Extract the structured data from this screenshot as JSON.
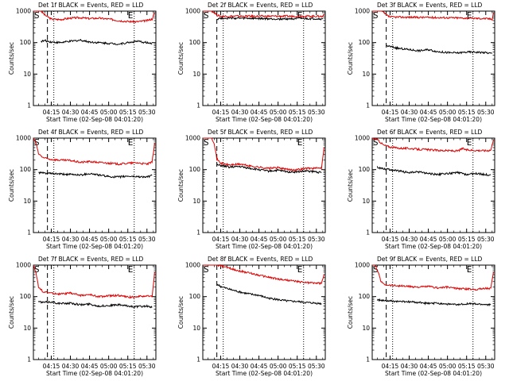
{
  "figure": {
    "xlabel": "Start Time (02-Sep-08 04:01:20)",
    "ylabel": "Counts/sec",
    "start_marker": "S",
    "end_marker": "E",
    "colors": {
      "events": "#000000",
      "lld": "#dd0000",
      "axes": "#000000"
    }
  },
  "chart_data": [
    {
      "type": "line",
      "title": "Det 1f BLACK = Events, RED = LLD",
      "xlabel": "Start Time (02-Sep-08 04:01:20)",
      "ylabel": "Counts/sec",
      "yscale": "log",
      "ylim": [
        1,
        1000
      ],
      "xlim": [
        "04:01",
        "05:37"
      ],
      "xticks": [
        "04:15",
        "04:30",
        "04:45",
        "05:00",
        "05:15",
        "05:30"
      ],
      "yticks": [
        "1",
        "10",
        "100",
        "1000"
      ],
      "dashed_line": "04:12",
      "dotted_lines": [
        "04:17",
        "05:20"
      ],
      "series": [
        {
          "x": [
            "04:01",
            "04:03",
            "04:05",
            "04:07",
            "04:10",
            "04:15",
            "04:22",
            "04:30",
            "04:38",
            "04:45",
            "04:52",
            "05:00",
            "05:08",
            "05:15",
            "05:22",
            "05:30",
            "05:34",
            "05:36"
          ],
          "values": [
            1000,
            1000,
            1000,
            1000,
            750,
            560,
            540,
            600,
            620,
            580,
            600,
            560,
            500,
            470,
            460,
            500,
            560,
            900
          ]
        },
        {
          "x": [
            "04:07",
            "04:10",
            "04:15",
            "04:22",
            "04:30",
            "04:38",
            "04:45",
            "04:52",
            "05:00",
            "05:08",
            "05:15",
            "05:22",
            "05:30",
            "05:34"
          ],
          "values": [
            110,
            115,
            105,
            100,
            110,
            120,
            105,
            100,
            95,
            90,
            100,
            110,
            100,
            90
          ]
        }
      ]
    },
    {
      "type": "line",
      "title": "Det 2f BLACK = Events, RED = LLD",
      "xlabel": "Start Time (02-Sep-08 04:01:20)",
      "ylabel": "Counts/sec",
      "yscale": "log",
      "ylim": [
        1,
        1000
      ],
      "xlim": [
        "04:01",
        "05:37"
      ],
      "xticks": [
        "04:15",
        "04:30",
        "04:45",
        "05:00",
        "05:15",
        "05:30"
      ],
      "yticks": [
        "1",
        "10",
        "100",
        "1000"
      ],
      "dashed_line": "04:12",
      "dotted_lines": [
        "04:17",
        "05:20"
      ],
      "series": [
        {
          "x": [
            "04:01",
            "04:05",
            "04:08",
            "04:10",
            "04:12",
            "04:15",
            "04:30",
            "04:45",
            "05:00",
            "05:15",
            "05:30",
            "05:35",
            "05:36"
          ],
          "values": [
            1000,
            1000,
            1000,
            900,
            750,
            690,
            690,
            690,
            690,
            690,
            690,
            680,
            800
          ]
        },
        {
          "x": [
            "04:12",
            "04:15",
            "04:30",
            "04:45",
            "05:00",
            "05:15",
            "05:30",
            "05:35"
          ],
          "values": [
            560,
            600,
            590,
            580,
            560,
            580,
            570,
            560
          ]
        }
      ]
    },
    {
      "type": "line",
      "title": "Det 3f BLACK = Events, RED = LLD",
      "xlabel": "Start Time (02-Sep-08 04:01:20)",
      "ylabel": "Counts/sec",
      "yscale": "log",
      "ylim": [
        1,
        1000
      ],
      "xlim": [
        "04:01",
        "05:37"
      ],
      "xticks": [
        "04:15",
        "04:30",
        "04:45",
        "05:00",
        "05:15",
        "05:30"
      ],
      "yticks": [
        "1",
        "10",
        "100",
        "1000"
      ],
      "dashed_line": "04:12",
      "dotted_lines": [
        "04:17",
        "05:20"
      ],
      "series": [
        {
          "x": [
            "04:01",
            "04:05",
            "04:08",
            "04:10",
            "04:12",
            "04:15",
            "04:30",
            "04:45",
            "05:00",
            "05:15",
            "05:30",
            "05:35",
            "05:36"
          ],
          "values": [
            1000,
            1000,
            1000,
            900,
            750,
            650,
            640,
            630,
            620,
            600,
            580,
            560,
            900
          ]
        },
        {
          "x": [
            "04:12",
            "04:15",
            "04:22",
            "04:30",
            "04:38",
            "04:45",
            "04:52",
            "05:00",
            "05:08",
            "05:15",
            "05:22",
            "05:30",
            "05:35"
          ],
          "values": [
            80,
            75,
            65,
            60,
            55,
            60,
            52,
            48,
            47,
            50,
            50,
            48,
            45
          ]
        }
      ]
    },
    {
      "type": "line",
      "title": "Det 4f BLACK = Events, RED = LLD",
      "xlabel": "Start Time (02-Sep-08 04:01:20)",
      "ylabel": "Counts/sec",
      "yscale": "log",
      "ylim": [
        1,
        1000
      ],
      "xlim": [
        "04:01",
        "05:37"
      ],
      "xticks": [
        "04:15",
        "04:30",
        "04:45",
        "05:00",
        "05:15",
        "05:30"
      ],
      "yticks": [
        "1",
        "10",
        "100",
        "1000"
      ],
      "dashed_line": "04:12",
      "dotted_lines": [
        "04:17",
        "05:20"
      ],
      "series": [
        {
          "x": [
            "04:01",
            "04:03",
            "04:05",
            "04:08",
            "04:10",
            "04:15",
            "04:22",
            "04:30",
            "04:38",
            "04:45",
            "04:52",
            "05:00",
            "05:08",
            "05:15",
            "05:22",
            "05:30",
            "05:34",
            "05:36"
          ],
          "values": [
            1000,
            700,
            320,
            250,
            230,
            210,
            200,
            195,
            170,
            180,
            170,
            160,
            150,
            160,
            165,
            150,
            170,
            700
          ]
        },
        {
          "x": [
            "04:05",
            "04:08",
            "04:15",
            "04:22",
            "04:30",
            "04:38",
            "04:45",
            "04:52",
            "05:00",
            "05:08",
            "05:15",
            "05:22",
            "05:30",
            "05:34"
          ],
          "values": [
            80,
            78,
            75,
            72,
            70,
            68,
            75,
            68,
            60,
            58,
            62,
            60,
            58,
            65
          ]
        }
      ]
    },
    {
      "type": "line",
      "title": "Det 5f BLACK = Events, RED = LLD",
      "xlabel": "Start Time (02-Sep-08 04:01:20)",
      "ylabel": "Counts/sec",
      "yscale": "log",
      "ylim": [
        1,
        1000
      ],
      "xlim": [
        "04:01",
        "05:37"
      ],
      "xticks": [
        "04:15",
        "04:30",
        "04:45",
        "05:00",
        "05:15",
        "05:30"
      ],
      "yticks": [
        "1",
        "10",
        "100",
        "1000"
      ],
      "dashed_line": "04:12",
      "dotted_lines": [
        "04:17",
        "05:20"
      ],
      "series": [
        {
          "x": [
            "04:01",
            "04:05",
            "04:08",
            "04:10",
            "04:12",
            "04:15",
            "04:22",
            "04:30",
            "04:38",
            "04:45",
            "04:52",
            "05:00",
            "05:08",
            "05:15",
            "05:22",
            "05:30",
            "05:34",
            "05:36"
          ],
          "values": [
            1000,
            1000,
            1000,
            700,
            220,
            160,
            140,
            150,
            130,
            120,
            110,
            115,
            100,
            100,
            110,
            110,
            115,
            500
          ]
        },
        {
          "x": [
            "04:12",
            "04:15",
            "04:22",
            "04:30",
            "04:38",
            "04:45",
            "04:52",
            "05:00",
            "05:08",
            "05:15",
            "05:22",
            "05:30",
            "05:34"
          ],
          "values": [
            140,
            135,
            120,
            125,
            110,
            100,
            90,
            95,
            85,
            85,
            90,
            85,
            80
          ]
        }
      ]
    },
    {
      "type": "line",
      "title": "Det 6f BLACK = Events, RED = LLD",
      "xlabel": "Start Time (02-Sep-08 04:01:20)",
      "ylabel": "Counts/sec",
      "yscale": "log",
      "ylim": [
        1,
        1000
      ],
      "xlim": [
        "04:01",
        "05:37"
      ],
      "xticks": [
        "04:15",
        "04:30",
        "04:45",
        "05:00",
        "05:15",
        "05:30"
      ],
      "yticks": [
        "1",
        "10",
        "100",
        "1000"
      ],
      "dashed_line": "04:12",
      "dotted_lines": [
        "04:17",
        "05:20"
      ],
      "series": [
        {
          "x": [
            "04:01",
            "04:05",
            "04:08",
            "04:10",
            "04:15",
            "04:22",
            "04:30",
            "04:38",
            "04:45",
            "04:52",
            "05:00",
            "05:08",
            "05:12",
            "05:15",
            "05:22",
            "05:30",
            "05:34",
            "05:36"
          ],
          "values": [
            1000,
            900,
            700,
            600,
            520,
            480,
            470,
            440,
            430,
            410,
            400,
            390,
            470,
            420,
            410,
            400,
            420,
            900
          ]
        },
        {
          "x": [
            "04:05",
            "04:08",
            "04:15",
            "04:22",
            "04:30",
            "04:38",
            "04:45",
            "04:52",
            "05:00",
            "05:08",
            "05:15",
            "05:22",
            "05:30",
            "05:34"
          ],
          "values": [
            120,
            110,
            100,
            90,
            80,
            85,
            75,
            70,
            75,
            80,
            70,
            75,
            70,
            68
          ]
        }
      ]
    },
    {
      "type": "line",
      "title": "Det 7f BLACK = Events, RED = LLD",
      "xlabel": "Start Time (02-Sep-08 04:01:20)",
      "ylabel": "Counts/sec",
      "yscale": "log",
      "ylim": [
        1,
        1000
      ],
      "xlim": [
        "04:01",
        "05:37"
      ],
      "xticks": [
        "04:15",
        "04:30",
        "04:45",
        "05:00",
        "05:15",
        "05:30"
      ],
      "yticks": [
        "1",
        "10",
        "100",
        "1000"
      ],
      "dashed_line": "04:12",
      "dotted_lines": [
        "04:17",
        "05:20"
      ],
      "series": [
        {
          "x": [
            "04:01",
            "04:03",
            "04:05",
            "04:08",
            "04:10",
            "04:15",
            "04:22",
            "04:30",
            "04:38",
            "04:45",
            "04:52",
            "05:00",
            "05:08",
            "05:15",
            "05:22",
            "05:30",
            "05:34",
            "05:36"
          ],
          "values": [
            1000,
            600,
            200,
            150,
            140,
            130,
            120,
            130,
            110,
            115,
            100,
            105,
            110,
            95,
            100,
            105,
            100,
            600
          ]
        },
        {
          "x": [
            "04:05",
            "04:08",
            "04:15",
            "04:22",
            "04:30",
            "04:38",
            "04:45",
            "04:52",
            "05:00",
            "05:08",
            "05:15",
            "05:22",
            "05:30",
            "05:34"
          ],
          "values": [
            70,
            65,
            68,
            60,
            62,
            55,
            58,
            50,
            52,
            55,
            50,
            48,
            50,
            45
          ]
        }
      ]
    },
    {
      "type": "line",
      "title": "Det 8f BLACK = Events, RED = LLD",
      "xlabel": "Start Time (02-Sep-08 04:01:20)",
      "ylabel": "Counts/sec",
      "yscale": "log",
      "ylim": [
        1,
        1000
      ],
      "xlim": [
        "04:01",
        "05:37"
      ],
      "xticks": [
        "04:15",
        "04:30",
        "04:45",
        "05:00",
        "05:15",
        "05:30"
      ],
      "yticks": [
        "1",
        "10",
        "100",
        "1000"
      ],
      "dashed_line": "04:12",
      "dotted_lines": [
        "04:17",
        "05:20"
      ],
      "series": [
        {
          "x": [
            "04:01",
            "04:05",
            "04:08",
            "04:12",
            "04:15",
            "04:22",
            "04:30",
            "04:38",
            "04:45",
            "04:52",
            "05:00",
            "05:08",
            "05:15",
            "05:22",
            "05:30",
            "05:34",
            "05:36"
          ],
          "values": [
            1000,
            1000,
            1000,
            1000,
            950,
            800,
            650,
            560,
            480,
            420,
            360,
            330,
            300,
            280,
            270,
            260,
            500
          ]
        },
        {
          "x": [
            "04:12",
            "04:15",
            "04:22",
            "04:30",
            "04:38",
            "04:45",
            "04:52",
            "05:00",
            "05:08",
            "05:15",
            "05:22",
            "05:30",
            "05:34"
          ],
          "values": [
            250,
            210,
            170,
            140,
            120,
            110,
            90,
            80,
            72,
            70,
            65,
            62,
            60
          ]
        }
      ]
    },
    {
      "type": "line",
      "title": "Det 9f BLACK = Events, RED = LLD",
      "xlabel": "Start Time (02-Sep-08 04:01:20)",
      "ylabel": "Counts/sec",
      "yscale": "log",
      "ylim": [
        1,
        1000
      ],
      "xlim": [
        "04:01",
        "05:37"
      ],
      "xticks": [
        "04:15",
        "04:30",
        "04:45",
        "05:00",
        "05:15",
        "05:30"
      ],
      "yticks": [
        "1",
        "10",
        "100",
        "1000"
      ],
      "dashed_line": "04:12",
      "dotted_lines": [
        "04:17",
        "05:20"
      ],
      "series": [
        {
          "x": [
            "04:01",
            "04:03",
            "04:05",
            "04:08",
            "04:10",
            "04:15",
            "04:22",
            "04:30",
            "04:38",
            "04:45",
            "04:52",
            "05:00",
            "05:08",
            "05:15",
            "05:22",
            "05:30",
            "05:34",
            "05:36"
          ],
          "values": [
            1000,
            1000,
            700,
            300,
            250,
            230,
            220,
            210,
            200,
            210,
            190,
            200,
            180,
            175,
            170,
            185,
            180,
            600
          ]
        },
        {
          "x": [
            "04:05",
            "04:08",
            "04:15",
            "04:22",
            "04:30",
            "04:38",
            "04:45",
            "04:52",
            "05:00",
            "05:08",
            "05:15",
            "05:22",
            "05:30",
            "05:34"
          ],
          "values": [
            80,
            75,
            72,
            70,
            68,
            65,
            60,
            62,
            58,
            55,
            60,
            58,
            56,
            55
          ]
        }
      ]
    }
  ]
}
